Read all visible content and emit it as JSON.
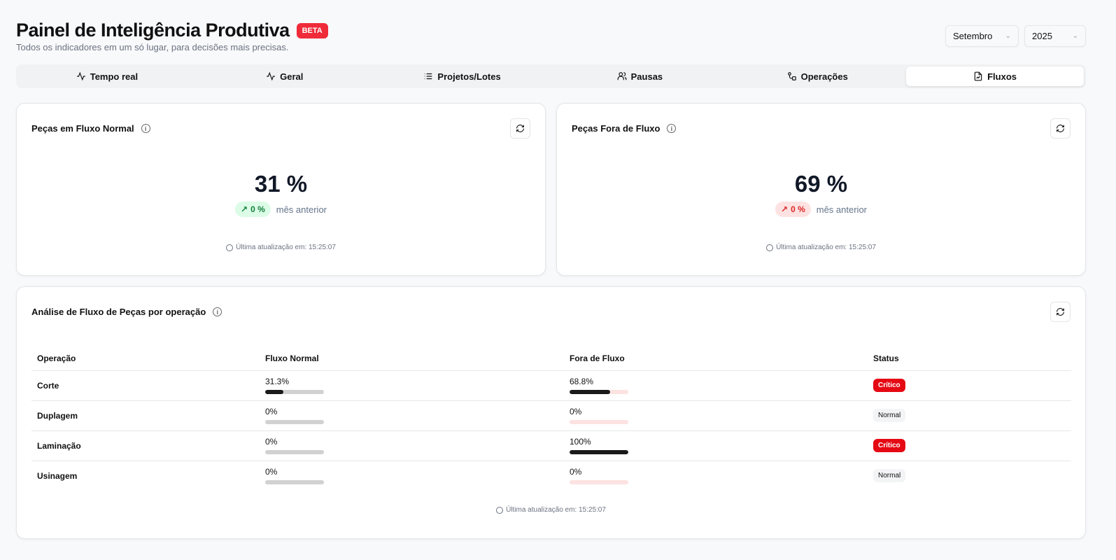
{
  "header": {
    "title": "Painel de Inteligência Produtiva",
    "badge": "BETA",
    "subtitle": "Todos os indicadores em um só lugar, para decisões mais precisas.",
    "month": "Setembro",
    "year": "2025"
  },
  "tabs": [
    {
      "label": "Tempo real",
      "icon": "activity-icon"
    },
    {
      "label": "Geral",
      "icon": "activity-icon"
    },
    {
      "label": "Projetos/Lotes",
      "icon": "list-icon"
    },
    {
      "label": "Pausas",
      "icon": "users-icon"
    },
    {
      "label": "Operações",
      "icon": "workflow-icon"
    },
    {
      "label": "Fluxos",
      "icon": "file-chart-icon",
      "active": true
    }
  ],
  "cards": [
    {
      "title": "Peças em Fluxo Normal",
      "value": "31 %",
      "delta": "0 %",
      "delta_label": "mês anterior",
      "updated": "Última atualização em: 15:25:07",
      "color": "#15803d"
    },
    {
      "title": "Peças Fora de Fluxo",
      "value": "69 %",
      "delta": "0 %",
      "delta_label": "mês anterior",
      "updated": "Última atualização em: 15:25:07",
      "color": "#dc2626"
    }
  ],
  "analysis": {
    "title": "Análise de Fluxo de Peças por operação",
    "columns": [
      "Operação",
      "Fluxo Normal",
      "Fora de Fluxo",
      "Status"
    ],
    "rows": [
      {
        "op": "Corte",
        "normal_label": "31.3%",
        "normal": 31.3,
        "fora_label": "68.8%",
        "fora": 68.8,
        "status": "Crítico",
        "critical": true
      },
      {
        "op": "Duplagem",
        "normal_label": "0%",
        "normal": 0,
        "fora_label": "0%",
        "fora": 0,
        "status": "Normal",
        "critical": false
      },
      {
        "op": "Laminação",
        "normal_label": "0%",
        "normal": 0,
        "fora_label": "100%",
        "fora": 100,
        "status": "Crítico",
        "critical": true
      },
      {
        "op": "Usinagem",
        "normal_label": "0%",
        "normal": 0,
        "fora_label": "0%",
        "fora": 0,
        "status": "Normal",
        "critical": false
      }
    ],
    "updated": "Última atualização em: 15:25:07"
  }
}
